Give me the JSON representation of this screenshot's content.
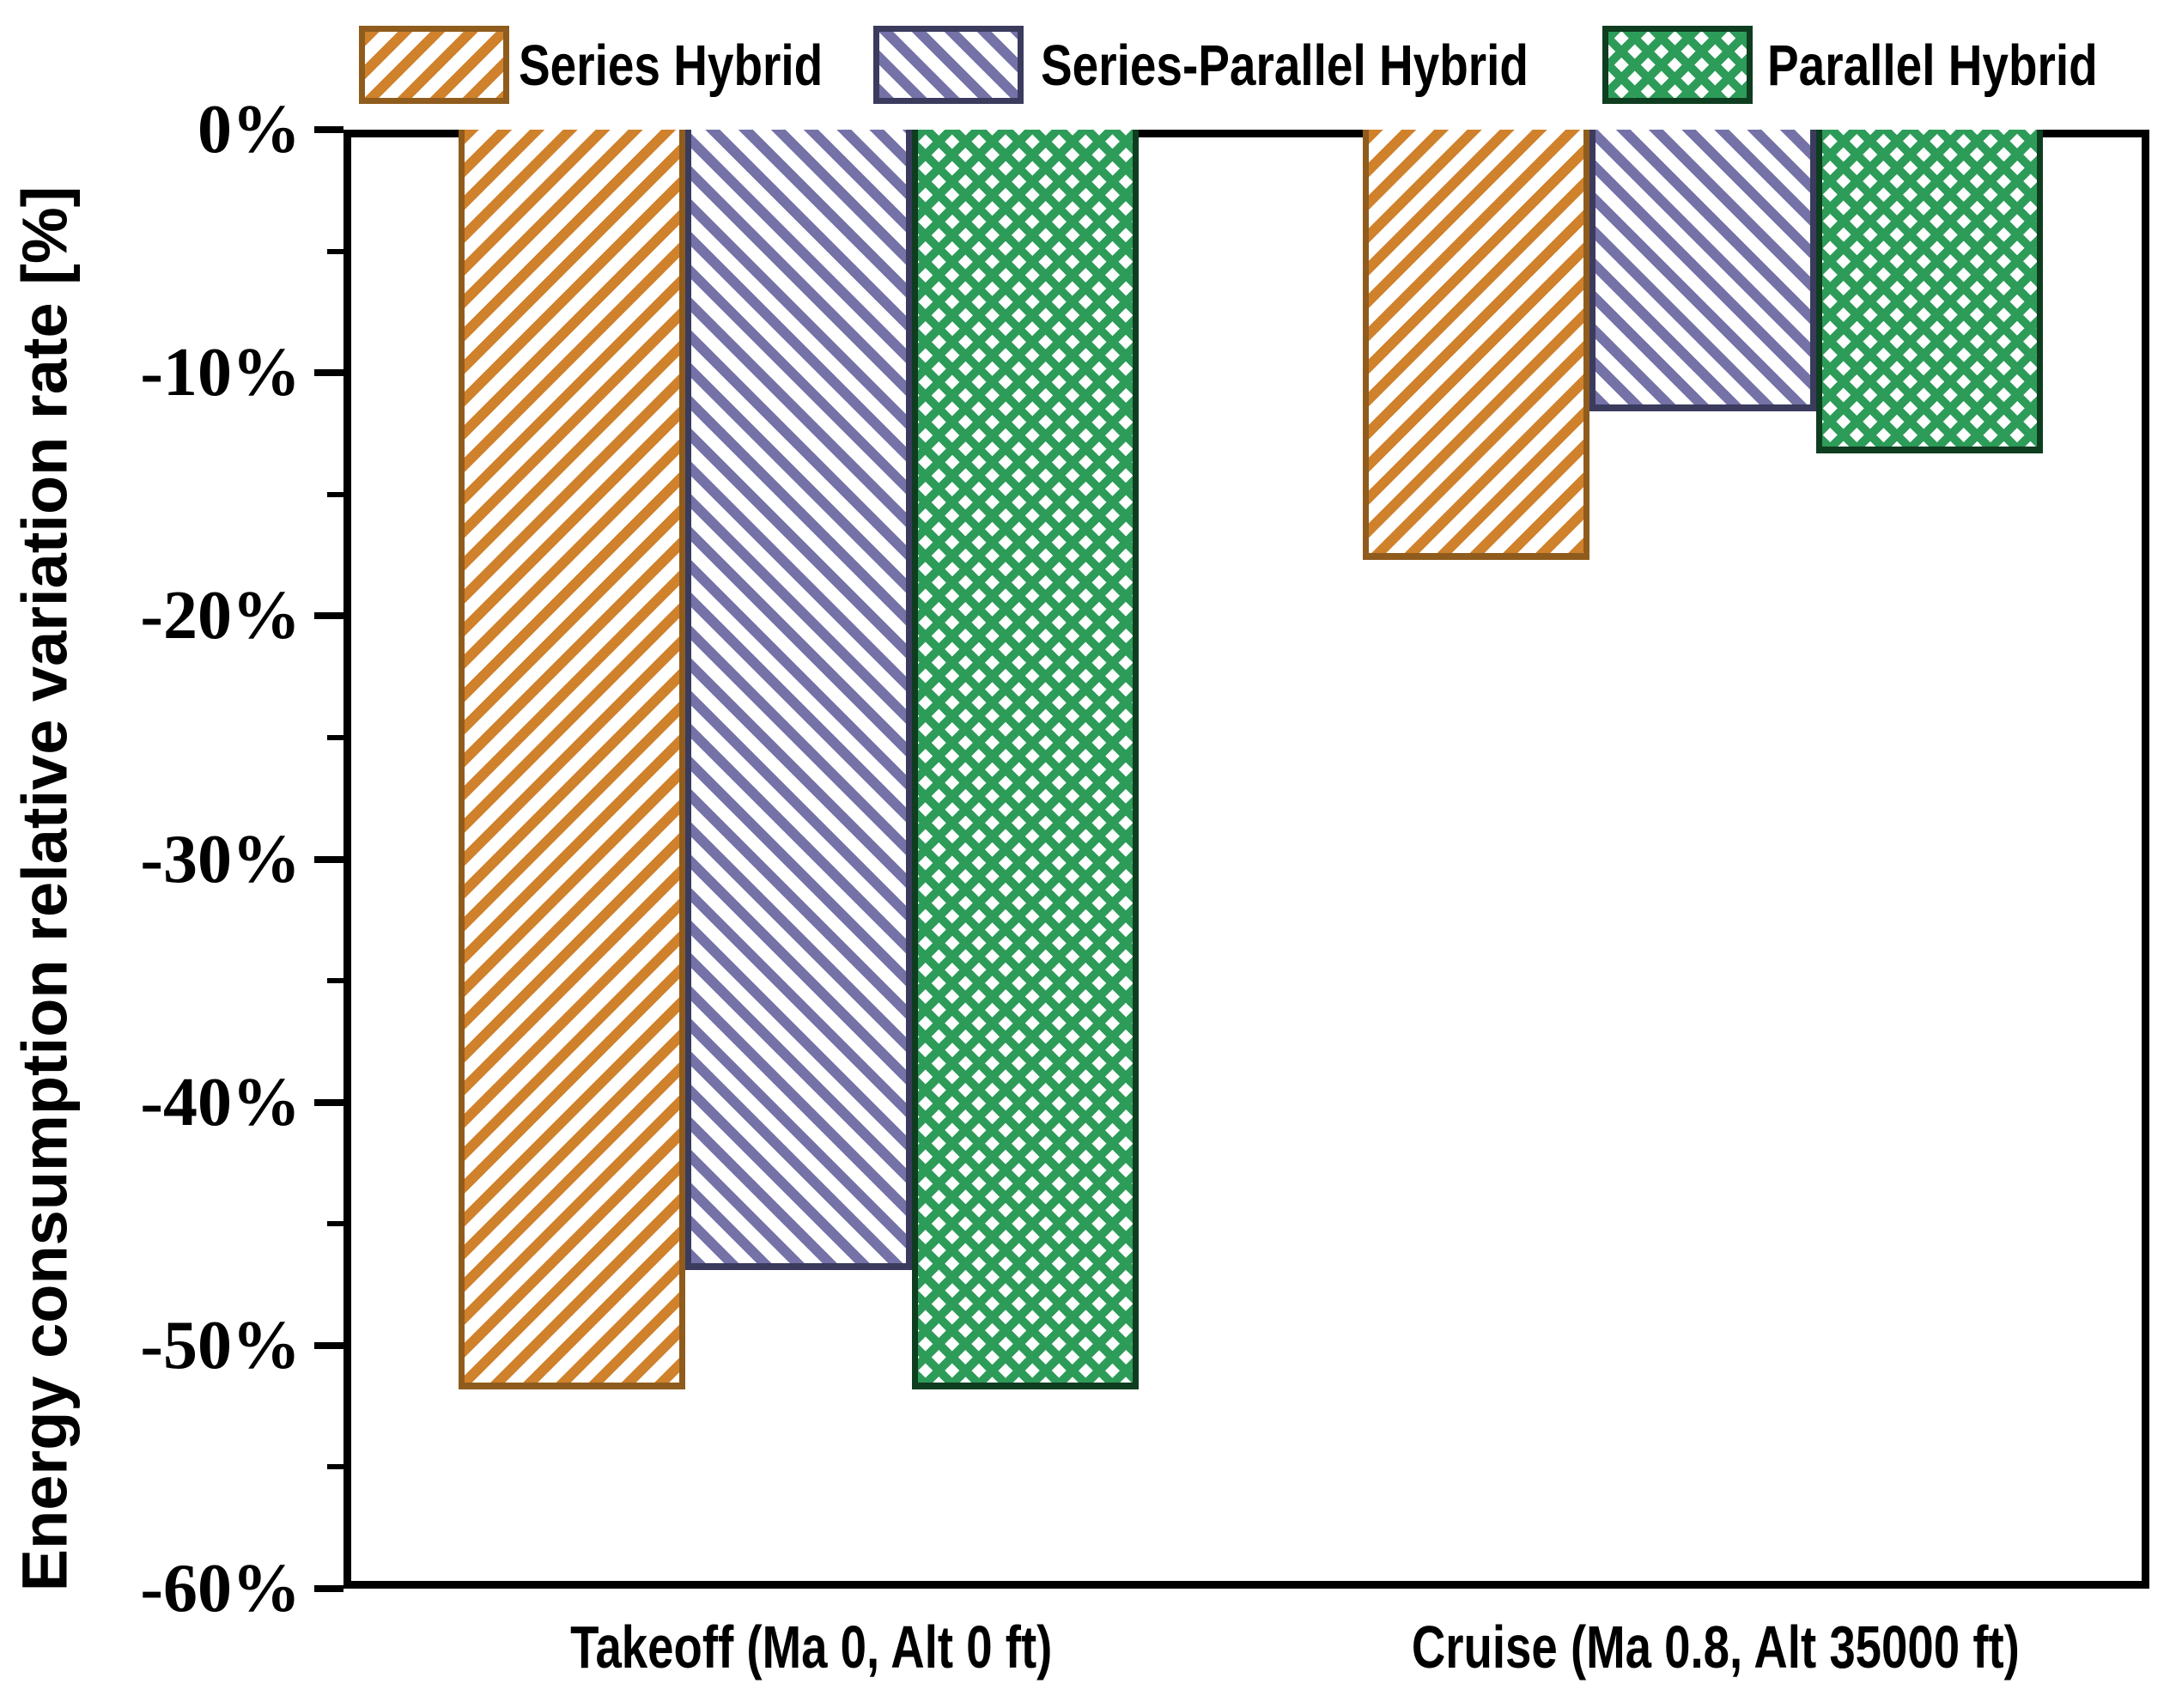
{
  "chart_data": {
    "type": "bar",
    "title": "",
    "categories": [
      "Takeoff (Ma 0, Alt 0 ft)",
      "Cruise (Ma 0.8, Alt 35000 ft)"
    ],
    "series": [
      {
        "name": "Series Hybrid",
        "values": [
          -51.8,
          -17.7
        ],
        "pattern": "diagonal-forward",
        "fill_color": "#D0812B",
        "edge_color": "#8F5C1D"
      },
      {
        "name": "Series-Parallel Hybrid",
        "values": [
          -46.9,
          -11.6
        ],
        "pattern": "diagonal-backward",
        "fill_color": "#7572A8",
        "edge_color": "#3B3B5E"
      },
      {
        "name": "Parallel Hybrid",
        "values": [
          -51.8,
          -13.3
        ],
        "pattern": "crosshatch",
        "fill_color": "#2D9C59",
        "edge_color": "#0E3D20"
      }
    ],
    "xlabel": "",
    "ylabel": "Energy consumption relative variation rate [%]",
    "ylim": [
      -60,
      0
    ],
    "y_major_ticks": [
      {
        "value": 0,
        "label": "0%"
      },
      {
        "value": -10,
        "label": "-10%"
      },
      {
        "value": -20,
        "label": "-20%"
      },
      {
        "value": -30,
        "label": "-30%"
      },
      {
        "value": -40,
        "label": "-40%"
      },
      {
        "value": -50,
        "label": "-50%"
      },
      {
        "value": -60,
        "label": "-60%"
      }
    ],
    "y_minor_ticks": [
      -5,
      -15,
      -25,
      -35,
      -45,
      -55
    ],
    "legend_position": "top",
    "grid": false,
    "axis_color": "#000000",
    "background_color": "#FFFFFF"
  }
}
